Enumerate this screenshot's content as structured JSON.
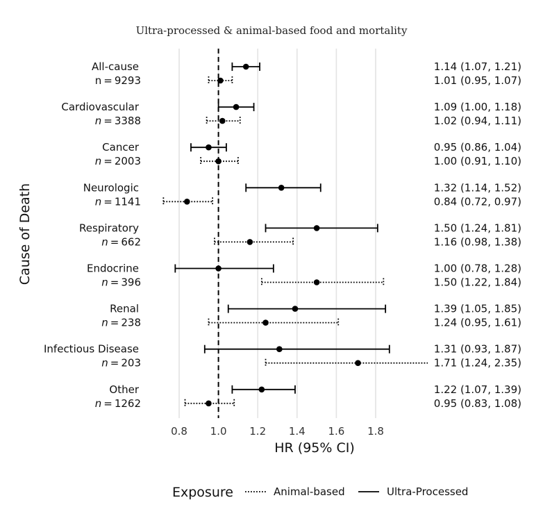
{
  "chart_data": {
    "type": "forest",
    "title": "Ultra-processed & animal-based food and mortality",
    "xlabel": "HR (95% CI)",
    "ylabel": "Cause of Death",
    "xlim": [
      0.7,
      1.9
    ],
    "xticks": [
      "0.8",
      "1.0",
      "1.2",
      "1.4",
      "1.6",
      "1.8"
    ],
    "reference_line": 1.0,
    "grid": "vertical",
    "legend": {
      "title": "Exposure",
      "placement": "bottom",
      "entries": [
        {
          "label": "Animal-based",
          "style": "dotted"
        },
        {
          "label": "Ultra-Processed",
          "style": "solid"
        }
      ]
    },
    "categories": [
      {
        "name": "All-cause",
        "n_prefix": "n",
        "n": "9293",
        "n_italic": false,
        "ultra": {
          "hr": 1.14,
          "lo": 1.07,
          "hi": 1.21,
          "label": "1.14 (1.07, 1.21)"
        },
        "animal": {
          "hr": 1.01,
          "lo": 0.95,
          "hi": 1.07,
          "label": "1.01 (0.95, 1.07)"
        }
      },
      {
        "name": "Cardiovascular",
        "n_prefix": "n",
        "n": "3388",
        "n_italic": true,
        "ultra": {
          "hr": 1.09,
          "lo": 1.0,
          "hi": 1.18,
          "label": "1.09 (1.00, 1.18)"
        },
        "animal": {
          "hr": 1.02,
          "lo": 0.94,
          "hi": 1.11,
          "label": "1.02 (0.94, 1.11)"
        }
      },
      {
        "name": "Cancer",
        "n_prefix": "n",
        "n": "2003",
        "n_italic": true,
        "ultra": {
          "hr": 0.95,
          "lo": 0.86,
          "hi": 1.04,
          "label": "0.95 (0.86, 1.04)"
        },
        "animal": {
          "hr": 1.0,
          "lo": 0.91,
          "hi": 1.1,
          "label": "1.00 (0.91, 1.10)"
        }
      },
      {
        "name": "Neurologic",
        "n_prefix": "n",
        "n": "1141",
        "n_italic": true,
        "ultra": {
          "hr": 1.32,
          "lo": 1.14,
          "hi": 1.52,
          "label": "1.32 (1.14, 1.52)"
        },
        "animal": {
          "hr": 0.84,
          "lo": 0.72,
          "hi": 0.97,
          "label": "0.84 (0.72, 0.97)"
        }
      },
      {
        "name": "Respiratory",
        "n_prefix": "n",
        "n": "662",
        "n_italic": true,
        "ultra": {
          "hr": 1.5,
          "lo": 1.24,
          "hi": 1.81,
          "label": "1.50 (1.24, 1.81)"
        },
        "animal": {
          "hr": 1.16,
          "lo": 0.98,
          "hi": 1.38,
          "label": "1.16 (0.98, 1.38)"
        }
      },
      {
        "name": "Endocrine",
        "n_prefix": "n",
        "n": "396",
        "n_italic": true,
        "ultra": {
          "hr": 1.0,
          "lo": 0.78,
          "hi": 1.28,
          "label": "1.00 (0.78, 1.28)"
        },
        "animal": {
          "hr": 1.5,
          "lo": 1.22,
          "hi": 1.84,
          "label": "1.50 (1.22, 1.84)"
        }
      },
      {
        "name": "Renal",
        "n_prefix": "n",
        "n": "238",
        "n_italic": true,
        "ultra": {
          "hr": 1.39,
          "lo": 1.05,
          "hi": 1.85,
          "label": "1.39 (1.05, 1.85)"
        },
        "animal": {
          "hr": 1.24,
          "lo": 0.95,
          "hi": 1.61,
          "label": "1.24 (0.95, 1.61)"
        }
      },
      {
        "name": "Infectious Disease",
        "n_prefix": "n",
        "n": "203",
        "n_italic": true,
        "ultra": {
          "hr": 1.31,
          "lo": 0.93,
          "hi": 1.87,
          "label": "1.31 (0.93, 1.87)"
        },
        "animal": {
          "hr": 1.71,
          "lo": 1.24,
          "hi": 2.35,
          "label": "1.71 (1.24, 2.35)"
        }
      },
      {
        "name": "Other",
        "n_prefix": "n",
        "n": "1262",
        "n_italic": true,
        "ultra": {
          "hr": 1.22,
          "lo": 1.07,
          "hi": 1.39,
          "label": "1.22 (1.07, 1.39)"
        },
        "animal": {
          "hr": 0.95,
          "lo": 0.83,
          "hi": 1.08,
          "label": "0.95 (0.83, 1.08)"
        }
      }
    ],
    "colors": {
      "line": "#000000",
      "grid": "#e3e3e3",
      "reference": "#000000"
    }
  }
}
